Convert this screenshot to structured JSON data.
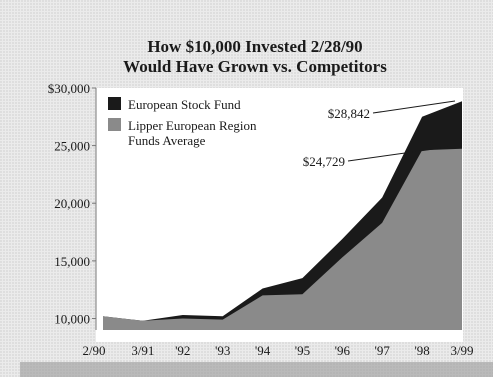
{
  "chart_data": {
    "type": "area",
    "title": [
      "How $10,000 Invested 2/28/90",
      "Would Have Grown vs. Competitors"
    ],
    "x_labels": [
      "2/90",
      "3/91",
      "'92",
      "'93",
      "'94",
      "'95",
      "'96",
      "'97",
      "'98",
      "3/99"
    ],
    "ylim": [
      9000,
      30000
    ],
    "y_ticks": [
      10000,
      15000,
      20000,
      25000,
      30000
    ],
    "y_tick_labels": [
      "10,000",
      "15,000",
      "20,000",
      "25,000",
      "$30,000"
    ],
    "series": [
      {
        "name": "European Stock Fund",
        "color": "#1a1a1a",
        "values": [
          10200,
          9800,
          10300,
          10200,
          12600,
          13500,
          16900,
          20500,
          27500,
          28842
        ]
      },
      {
        "name": "Lipper European Region Funds Average",
        "color": "#8a8a8a",
        "values": [
          10200,
          9800,
          10000,
          9900,
          12000,
          12100,
          15300,
          18300,
          24600,
          24729
        ]
      }
    ],
    "annotations": [
      "$28,842",
      "$24,729"
    ],
    "legend_position": "top-left",
    "grid": false
  },
  "colors": {
    "background": "#ececec",
    "plot_area": "#ffffff",
    "fund": "#1a1a1a",
    "average": "#8a8a8a"
  }
}
